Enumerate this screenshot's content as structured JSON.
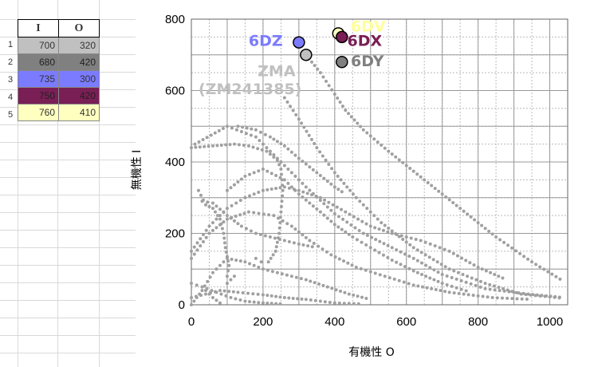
{
  "table": {
    "headers": [
      "I",
      "O"
    ],
    "rows": [
      {
        "num": "1",
        "I": "700",
        "O": "320",
        "color": "#c0c0c0"
      },
      {
        "num": "2",
        "I": "680",
        "O": "420",
        "color": "#808080"
      },
      {
        "num": "3",
        "I": "735",
        "O": "300",
        "color": "#7b7bff"
      },
      {
        "num": "4",
        "I": "750",
        "O": "420",
        "color": "#7a1f55"
      },
      {
        "num": "5",
        "I": "760",
        "O": "410",
        "color": "#ffffc0"
      }
    ]
  },
  "chart_data": {
    "type": "scatter",
    "xlabel": "有機性 O",
    "ylabel": "無機性 I",
    "xlim": [
      0,
      1050
    ],
    "ylim": [
      0,
      800
    ],
    "xticks": [
      "0",
      "200",
      "400",
      "600",
      "800",
      "1000"
    ],
    "yticks": [
      "0",
      "200",
      "400",
      "600",
      "800"
    ],
    "grid": true,
    "points": [
      {
        "label": "6DZ",
        "x": 300,
        "y": 735,
        "color": "#7b7bff",
        "label_color": "#7b7bff"
      },
      {
        "label": "ZMA",
        "x": 320,
        "y": 700,
        "color": "#c0c0c0",
        "label_color": "#c0c0c0"
      },
      {
        "label": "6DV",
        "x": 410,
        "y": 760,
        "color": "#ffffc0",
        "label_color": "#ffff99"
      },
      {
        "label": "6DX",
        "x": 420,
        "y": 750,
        "color": "#7a1f55",
        "label_color": "#7a1f55"
      },
      {
        "label": "6DY",
        "x": 420,
        "y": 680,
        "color": "#808080",
        "label_color": "#808080"
      }
    ],
    "annotations": [
      {
        "text": "6DZ",
        "x": 160,
        "y": 725,
        "color": "#7b7bff"
      },
      {
        "text": "6DV",
        "x": 445,
        "y": 765,
        "color": "#ffff99"
      },
      {
        "text": "6DX",
        "x": 435,
        "y": 725,
        "color": "#7a1f55"
      },
      {
        "text": "6DY",
        "x": 445,
        "y": 668,
        "color": "#808080"
      },
      {
        "text": "ZMA",
        "x": 185,
        "y": 640,
        "color": "#c0c0c0"
      },
      {
        "text": "(ZM241385)",
        "x": 20,
        "y": 590,
        "color": "#c0c0c0"
      }
    ],
    "background_color": "#a0a0a0",
    "background_curves": [
      [
        [
          320,
          700
        ],
        [
          360,
          650
        ],
        [
          400,
          590
        ],
        [
          430,
          545
        ],
        [
          480,
          490
        ],
        [
          550,
          430
        ],
        [
          650,
          350
        ],
        [
          750,
          270
        ],
        [
          850,
          190
        ],
        [
          950,
          120
        ],
        [
          1040,
          65
        ]
      ],
      [
        [
          260,
          580
        ],
        [
          300,
          520
        ],
        [
          350,
          440
        ],
        [
          400,
          370
        ],
        [
          460,
          300
        ],
        [
          530,
          230
        ],
        [
          620,
          160
        ],
        [
          720,
          100
        ],
        [
          820,
          60
        ],
        [
          920,
          30
        ],
        [
          1040,
          18
        ]
      ],
      [
        [
          10,
          450
        ],
        [
          100,
          500
        ],
        [
          180,
          470
        ],
        [
          250,
          400
        ],
        [
          320,
          330
        ],
        [
          400,
          255
        ],
        [
          480,
          200
        ],
        [
          560,
          160
        ],
        [
          620,
          130
        ],
        [
          700,
          85
        ],
        [
          820,
          45
        ],
        [
          940,
          30
        ],
        [
          1040,
          20
        ]
      ],
      [
        [
          0,
          440
        ],
        [
          60,
          445
        ],
        [
          120,
          450
        ],
        [
          160,
          445
        ],
        [
          210,
          430
        ],
        [
          240,
          405
        ],
        [
          250,
          380
        ],
        [
          255,
          320
        ],
        [
          250,
          260
        ],
        [
          245,
          200
        ],
        [
          235,
          150
        ],
        [
          215,
          120
        ],
        [
          195,
          120
        ],
        [
          180,
          130
        ],
        [
          165,
          140
        ]
      ],
      [
        [
          0,
          150
        ],
        [
          50,
          220
        ],
        [
          100,
          270
        ],
        [
          150,
          300
        ],
        [
          200,
          320
        ],
        [
          260,
          330
        ],
        [
          300,
          320
        ],
        [
          360,
          300
        ],
        [
          430,
          260
        ],
        [
          500,
          220
        ],
        [
          560,
          200
        ],
        [
          640,
          180
        ],
        [
          720,
          150
        ],
        [
          800,
          105
        ],
        [
          880,
          70
        ]
      ],
      [
        [
          0,
          130
        ],
        [
          50,
          200
        ],
        [
          100,
          240
        ],
        [
          160,
          260
        ],
        [
          230,
          250
        ],
        [
          280,
          220
        ],
        [
          330,
          180
        ],
        [
          390,
          140
        ],
        [
          460,
          105
        ],
        [
          540,
          80
        ],
        [
          620,
          55
        ],
        [
          720,
          35
        ],
        [
          840,
          20
        ],
        [
          950,
          15
        ]
      ],
      [
        [
          100,
          320
        ],
        [
          150,
          360
        ],
        [
          200,
          380
        ],
        [
          260,
          350
        ],
        [
          300,
          310
        ],
        [
          360,
          260
        ],
        [
          400,
          225
        ],
        [
          450,
          190
        ],
        [
          500,
          160
        ],
        [
          560,
          125
        ],
        [
          620,
          95
        ],
        [
          700,
          60
        ],
        [
          780,
          35
        ]
      ],
      [
        [
          0,
          0
        ],
        [
          30,
          40
        ],
        [
          60,
          90
        ],
        [
          100,
          130
        ],
        [
          150,
          120
        ],
        [
          200,
          100
        ],
        [
          240,
          90
        ],
        [
          280,
          80
        ],
        [
          320,
          70
        ],
        [
          380,
          50
        ],
        [
          440,
          30
        ],
        [
          500,
          15
        ]
      ],
      [
        [
          0,
          20
        ],
        [
          40,
          30
        ],
        [
          80,
          40
        ],
        [
          130,
          35
        ],
        [
          200,
          28
        ],
        [
          260,
          20
        ],
        [
          320,
          15
        ],
        [
          400,
          5
        ],
        [
          480,
          2
        ]
      ],
      [
        [
          20,
          320
        ],
        [
          40,
          280
        ],
        [
          60,
          270
        ],
        [
          80,
          240
        ],
        [
          90,
          200
        ],
        [
          95,
          160
        ],
        [
          105,
          110
        ],
        [
          100,
          80
        ],
        [
          100,
          60
        ],
        [
          120,
          80
        ],
        [
          140,
          80
        ]
      ],
      [
        [
          0,
          60
        ],
        [
          30,
          50
        ],
        [
          70,
          35
        ],
        [
          110,
          20
        ],
        [
          150,
          10
        ],
        [
          200,
          5
        ],
        [
          260,
          2
        ]
      ],
      [
        [
          30,
          50
        ],
        [
          60,
          20
        ],
        [
          80,
          5
        ],
        [
          95,
          0
        ]
      ],
      [
        [
          130,
          500
        ],
        [
          180,
          490
        ],
        [
          220,
          470
        ],
        [
          260,
          445
        ],
        [
          300,
          410
        ],
        [
          350,
          370
        ],
        [
          400,
          330
        ],
        [
          430,
          310
        ]
      ],
      [
        [
          30,
          290
        ],
        [
          60,
          285
        ],
        [
          100,
          250
        ],
        [
          140,
          220
        ],
        [
          180,
          200
        ],
        [
          220,
          190
        ],
        [
          260,
          180
        ],
        [
          300,
          170
        ],
        [
          350,
          160
        ]
      ]
    ]
  }
}
